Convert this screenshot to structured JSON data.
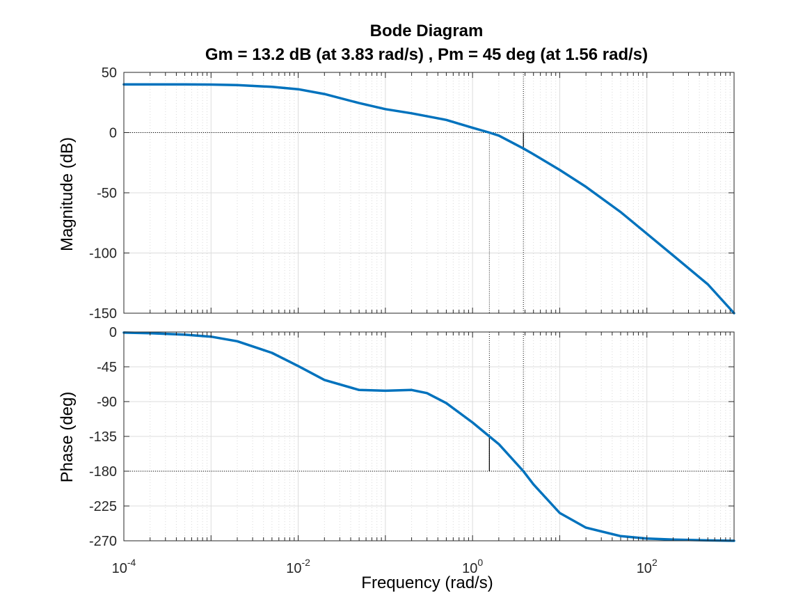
{
  "chart_data": {
    "type": "line",
    "title": "Bode Diagram",
    "subtitle": "Gm = 13.2 dB (at 3.83 rad/s) ,  Pm = 45 deg (at 1.56 rad/s)",
    "xlabel": "Frequency  (rad/s)",
    "xscale": "log",
    "xlim": [
      0.0001,
      1000
    ],
    "x_ticks": [
      {
        "base": "10",
        "exp": "-4",
        "value": 0.0001
      },
      {
        "base": "10",
        "exp": "-2",
        "value": 0.01
      },
      {
        "base": "10",
        "exp": "0",
        "value": 1
      },
      {
        "base": "10",
        "exp": "2",
        "value": 100
      }
    ],
    "grid": true,
    "line_color": "#0072BD",
    "margin_line_color": "#000000",
    "gain_margin": {
      "value_db": 13.2,
      "frequency": 3.83
    },
    "phase_margin": {
      "value_deg": 45,
      "frequency": 1.56
    },
    "magnitude": {
      "ylabel": "Magnitude (dB)",
      "ylim": [
        -150,
        50
      ],
      "yticks": [
        "50",
        "0",
        "-50",
        "-100",
        "-150"
      ],
      "ytick_values": [
        50,
        0,
        -50,
        -100,
        -150
      ],
      "reference_line": 0,
      "x": [
        0.0001,
        0.0002,
        0.0005,
        0.001,
        0.002,
        0.005,
        0.01,
        0.02,
        0.05,
        0.1,
        0.2,
        0.5,
        1,
        1.56,
        2,
        3.83,
        5,
        10,
        20,
        50,
        100,
        200,
        500,
        1000
      ],
      "y": [
        40,
        40,
        40,
        39.9,
        39.5,
        38,
        36,
        32,
        24.5,
        19.5,
        16,
        10.5,
        4,
        0,
        -2.5,
        -13.2,
        -18,
        -31,
        -45,
        -66,
        -84,
        -102,
        -126,
        -150
      ]
    },
    "phase": {
      "ylabel": "Phase (deg)",
      "ylim": [
        -270,
        0
      ],
      "yticks": [
        "0",
        "-45",
        "-90",
        "-135",
        "-180",
        "-225",
        "-270"
      ],
      "ytick_values": [
        0,
        -45,
        -90,
        -135,
        -180,
        -225,
        -270
      ],
      "reference_line": -180,
      "x": [
        0.0001,
        0.0002,
        0.0005,
        0.001,
        0.002,
        0.005,
        0.01,
        0.02,
        0.05,
        0.1,
        0.2,
        0.3,
        0.5,
        1,
        1.56,
        2,
        3.83,
        5,
        10,
        20,
        50,
        100,
        200,
        500,
        1000
      ],
      "y": [
        -0.8,
        -1.5,
        -3.5,
        -6,
        -12,
        -27,
        -44,
        -62,
        -75,
        -76,
        -75,
        -79,
        -92,
        -117,
        -135,
        -145,
        -180,
        -197,
        -234,
        -253,
        -264,
        -267,
        -268.5,
        -269.5,
        -270
      ]
    }
  }
}
